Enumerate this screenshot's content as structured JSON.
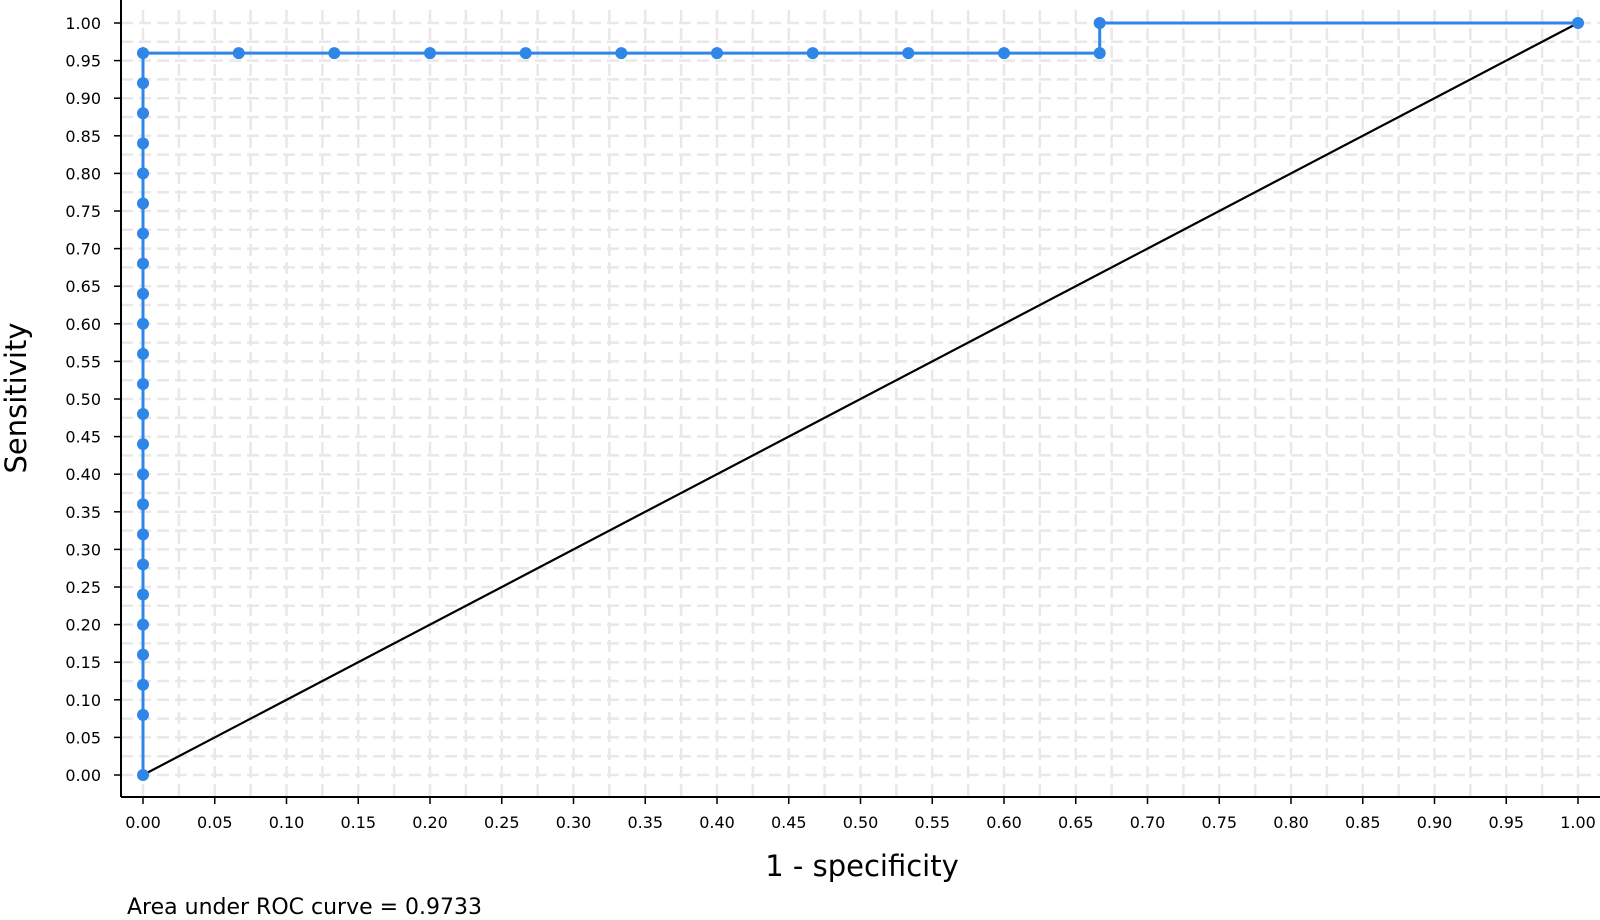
{
  "chart_data": {
    "type": "line",
    "title": "",
    "xlabel": "1 - specificity",
    "ylabel": "Sensitivity",
    "xlim": [
      0,
      1
    ],
    "ylim": [
      0,
      1
    ],
    "x_ticks": [
      "0.00",
      "0.05",
      "0.10",
      "0.15",
      "0.20",
      "0.25",
      "0.30",
      "0.35",
      "0.40",
      "0.45",
      "0.50",
      "0.55",
      "0.60",
      "0.65",
      "0.70",
      "0.75",
      "0.80",
      "0.85",
      "0.90",
      "0.95",
      "1.00"
    ],
    "y_ticks": [
      "0.00",
      "0.05",
      "0.10",
      "0.15",
      "0.20",
      "0.25",
      "0.30",
      "0.35",
      "0.40",
      "0.45",
      "0.50",
      "0.55",
      "0.60",
      "0.65",
      "0.70",
      "0.75",
      "0.80",
      "0.85",
      "0.90",
      "0.95",
      "1.00"
    ],
    "grid": true,
    "roc_color": "#2f86e6",
    "reference_color": "#000000",
    "roc_points": [
      [
        0,
        0
      ],
      [
        0,
        0.08
      ],
      [
        0,
        0.12
      ],
      [
        0,
        0.16
      ],
      [
        0,
        0.2
      ],
      [
        0,
        0.24
      ],
      [
        0,
        0.28
      ],
      [
        0,
        0.32
      ],
      [
        0,
        0.36
      ],
      [
        0,
        0.4
      ],
      [
        0,
        0.44
      ],
      [
        0,
        0.48
      ],
      [
        0,
        0.52
      ],
      [
        0,
        0.56
      ],
      [
        0,
        0.6
      ],
      [
        0,
        0.64
      ],
      [
        0,
        0.68
      ],
      [
        0,
        0.72
      ],
      [
        0,
        0.76
      ],
      [
        0,
        0.8
      ],
      [
        0,
        0.84
      ],
      [
        0,
        0.88
      ],
      [
        0,
        0.92
      ],
      [
        0,
        0.96
      ],
      [
        0.0667,
        0.96
      ],
      [
        0.1333,
        0.96
      ],
      [
        0.2,
        0.96
      ],
      [
        0.2667,
        0.96
      ],
      [
        0.3333,
        0.96
      ],
      [
        0.4,
        0.96
      ],
      [
        0.4667,
        0.96
      ],
      [
        0.5333,
        0.96
      ],
      [
        0.6,
        0.96
      ],
      [
        0.6667,
        0.96
      ],
      [
        0.6667,
        1.0
      ],
      [
        1.0,
        1.0
      ]
    ],
    "reference_line": [
      [
        0,
        0
      ],
      [
        1,
        1
      ]
    ],
    "annotation": "Area under ROC curve = 0.9733"
  }
}
